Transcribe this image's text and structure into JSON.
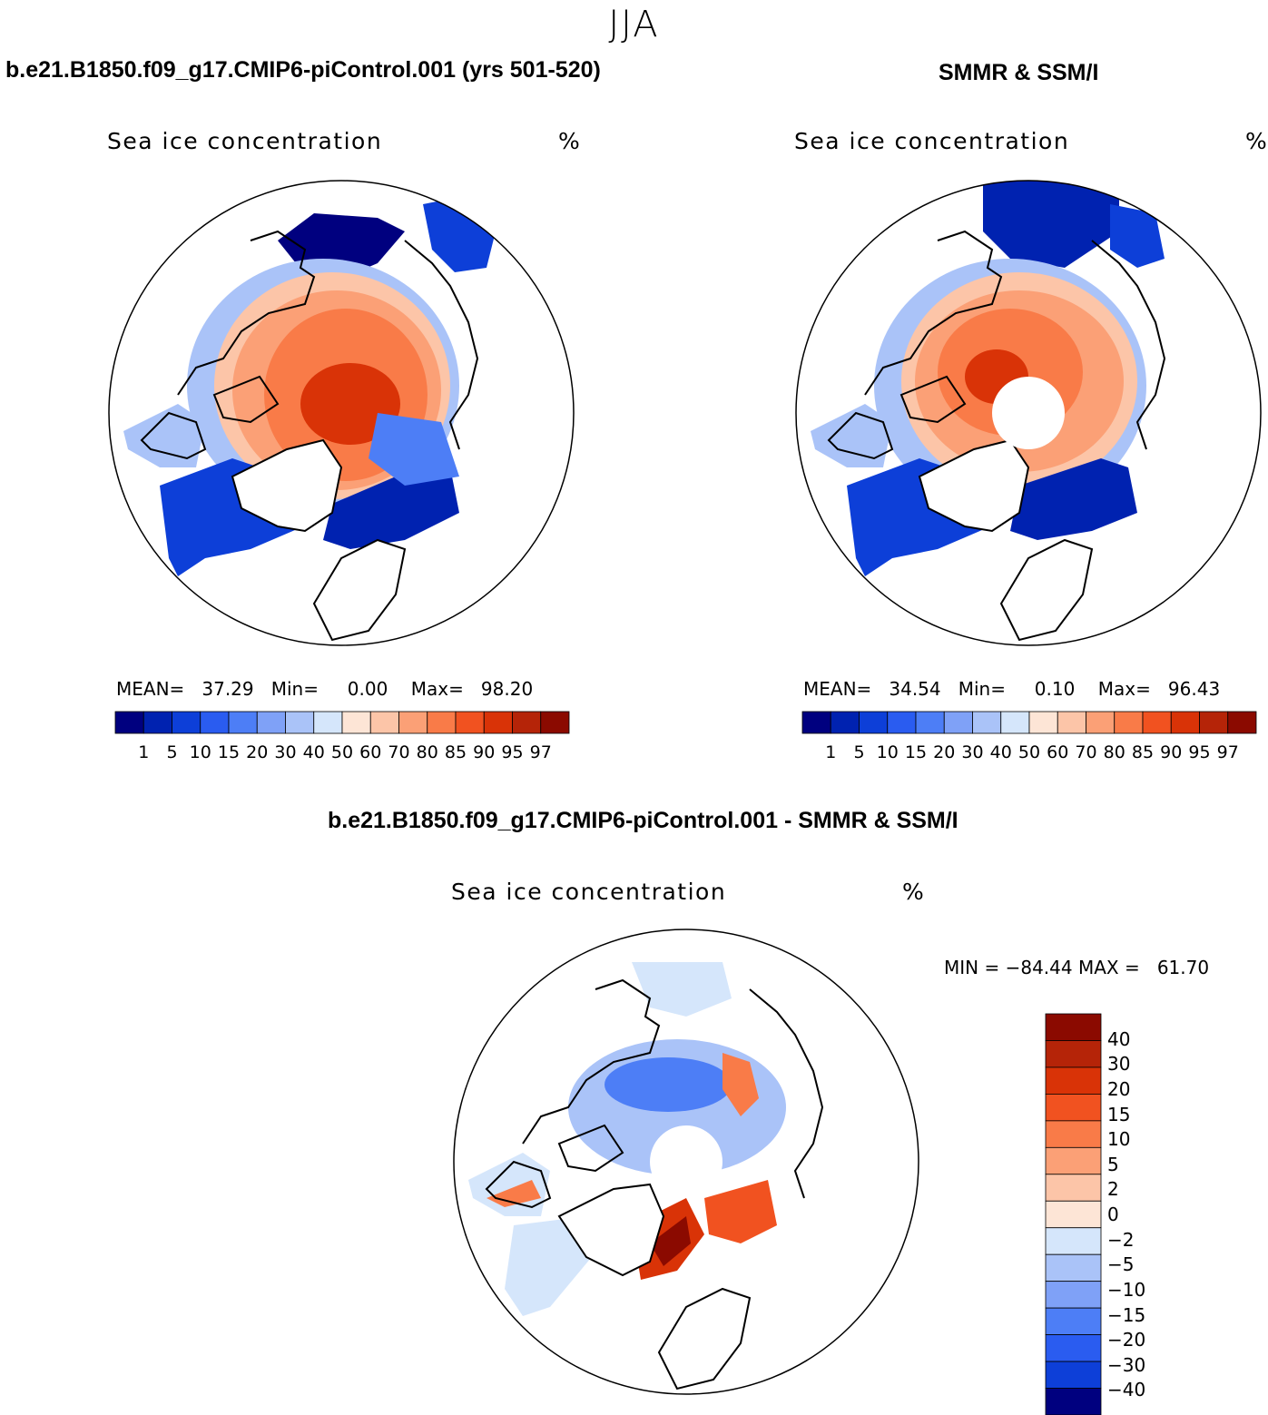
{
  "season": "JJA",
  "var_title": "Sea ice concentration",
  "unit": "%",
  "colors": {
    "land": "#ffffff",
    "coast": "#000000",
    "seq_palette": [
      "#00007f",
      "#0022b0",
      "#0d3fd8",
      "#2a5cf0",
      "#4d7ef6",
      "#7fa1f7",
      "#aac3f8",
      "#d5e6fb",
      "#fde5d6",
      "#fcc5a8",
      "#fba076",
      "#f97b48",
      "#f15220",
      "#d93307",
      "#b52408",
      "#8b0a00"
    ],
    "diff_palette": [
      "#00007f",
      "#0d3fd8",
      "#2a5cf0",
      "#4d7ef6",
      "#7fa1f7",
      "#aac3f8",
      "#d5e6fb",
      "#fde5d6",
      "#fcc5a8",
      "#fba076",
      "#f97b48",
      "#f15220",
      "#d93307",
      "#b52408",
      "#8b0a00"
    ]
  },
  "panels": [
    {
      "title": "b.e21.B1850.f09_g17.CMIP6-piControl.001 (yrs 501-520)",
      "mean_label": "MEAN=",
      "mean": "37.29",
      "min_label": "Min=",
      "min": "0.00",
      "max_label": "Max=",
      "max": "98.20",
      "ticks": [
        "1",
        "5",
        "10",
        "15",
        "20",
        "30",
        "40",
        "50",
        "60",
        "70",
        "80",
        "85",
        "90",
        "95",
        "97"
      ]
    },
    {
      "title": "SMMR & SSM/I",
      "mean_label": "MEAN=",
      "mean": "34.54",
      "min_label": "Min=",
      "min": "0.10",
      "max_label": "Max=",
      "max": "96.43",
      "ticks": [
        "1",
        "5",
        "10",
        "15",
        "20",
        "30",
        "40",
        "50",
        "60",
        "70",
        "80",
        "85",
        "90",
        "95",
        "97"
      ]
    }
  ],
  "diff": {
    "title": "b.e21.B1850.f09_g17.CMIP6-piControl.001 - SMMR & SSM/I",
    "min_label": "MIN =",
    "min": "−84.44",
    "max_label": "MAX =",
    "max": "61.70",
    "ticks": [
      "40",
      "30",
      "20",
      "15",
      "10",
      "5",
      "2",
      "0",
      "−2",
      "−5",
      "−10",
      "−15",
      "−20",
      "−30",
      "−40"
    ]
  }
}
